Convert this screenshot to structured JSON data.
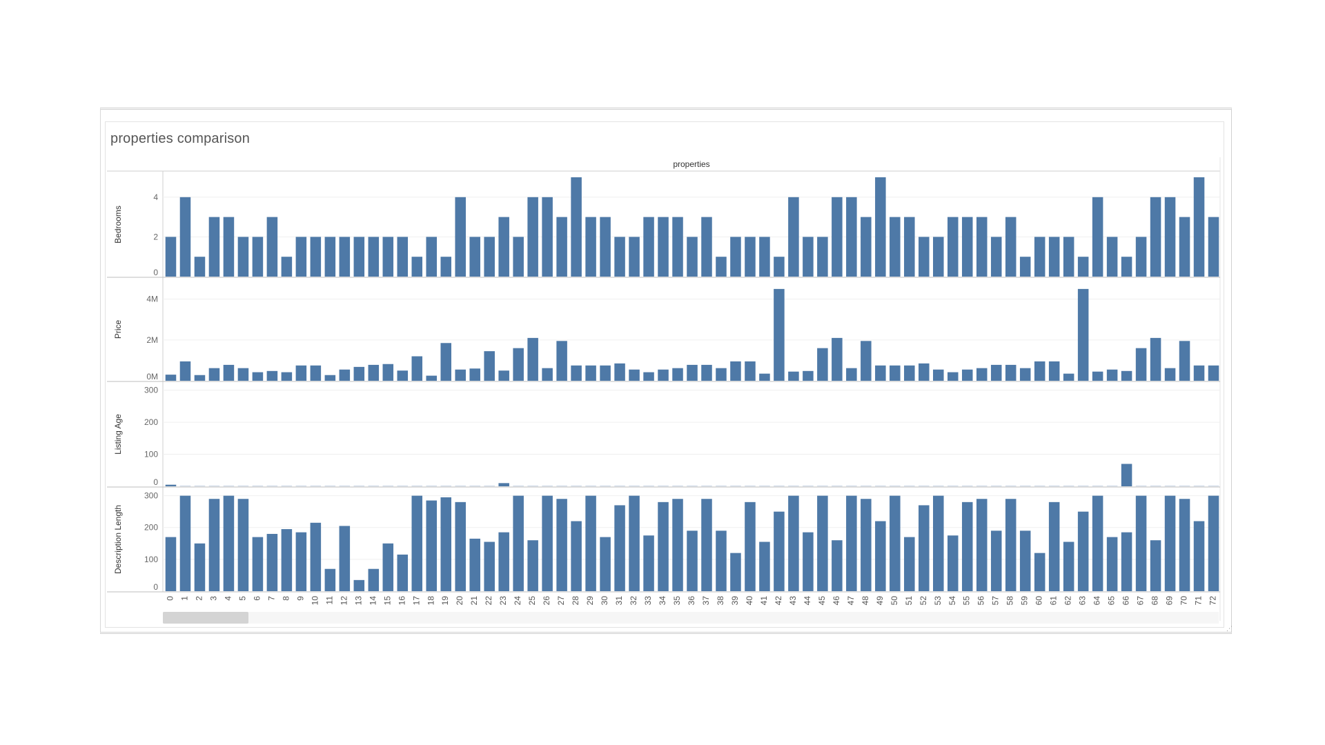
{
  "title": "properties comparison",
  "chart_data": {
    "type": "bar",
    "column_header": "properties",
    "categories": [
      "0",
      "1",
      "2",
      "3",
      "4",
      "5",
      "6",
      "7",
      "8",
      "9",
      "10",
      "11",
      "12",
      "13",
      "14",
      "15",
      "16",
      "17",
      "18",
      "19",
      "20",
      "21",
      "22",
      "23",
      "24",
      "25",
      "26",
      "27",
      "28",
      "29",
      "30",
      "31",
      "32",
      "33",
      "34",
      "35",
      "36",
      "37",
      "38",
      "39",
      "40",
      "41",
      "42",
      "43",
      "44",
      "45",
      "46",
      "47",
      "48",
      "49",
      "50",
      "51",
      "52",
      "53",
      "54",
      "55",
      "56",
      "57",
      "58",
      "59",
      "60",
      "61",
      "62",
      "63",
      "64",
      "65",
      "66",
      "67",
      "68",
      "69",
      "70",
      "71",
      "72"
    ],
    "bar_color": "#4e79a7",
    "panels": [
      {
        "name": "Bedrooms",
        "ylim": [
          0,
          5
        ],
        "ticks": [
          0,
          2,
          4
        ],
        "tick_labels": [
          "0",
          "2",
          "4"
        ],
        "values": [
          2,
          4,
          1,
          3,
          3,
          2,
          2,
          3,
          1,
          2,
          2,
          2,
          2,
          2,
          2,
          2,
          2,
          1,
          2,
          1,
          4,
          2,
          2,
          3,
          2,
          4,
          4,
          3,
          5,
          3,
          3,
          2,
          2,
          3,
          3,
          3,
          2,
          3,
          1,
          2,
          2,
          2,
          1,
          4,
          2,
          2,
          4,
          4,
          3,
          5,
          3,
          3,
          2,
          2,
          3,
          3,
          3,
          2,
          3,
          1,
          2,
          2,
          2,
          1,
          4,
          2,
          1,
          2,
          4,
          4,
          3,
          5,
          3
        ]
      },
      {
        "name": "Price",
        "ylim": [
          0,
          4800000
        ],
        "ticks": [
          0,
          2000000,
          4000000
        ],
        "tick_labels": [
          "0M",
          "2M",
          "4M"
        ],
        "values": [
          300000,
          950000,
          280000,
          620000,
          780000,
          620000,
          420000,
          480000,
          420000,
          750000,
          750000,
          280000,
          550000,
          680000,
          780000,
          820000,
          500000,
          1200000,
          250000,
          1850000,
          550000,
          600000,
          1450000,
          500000,
          1600000,
          2100000,
          620000,
          1950000,
          750000,
          750000,
          750000,
          850000,
          550000,
          420000,
          550000,
          620000,
          780000,
          780000,
          620000,
          950000,
          950000,
          350000,
          4500000,
          450000,
          480000,
          1600000,
          2100000,
          620000,
          1950000,
          750000,
          750000,
          750000,
          850000,
          550000,
          420000,
          550000,
          620000,
          780000,
          780000,
          620000,
          950000,
          950000,
          350000,
          4500000,
          450000,
          550000,
          480000,
          1600000,
          2100000,
          620000,
          1950000,
          750000,
          750000
        ]
      },
      {
        "name": "Listing Age",
        "ylim": [
          0,
          310
        ],
        "ticks": [
          0,
          100,
          200,
          300
        ],
        "tick_labels": [
          "0",
          "100",
          "200",
          "300"
        ],
        "values": [
          5,
          0,
          0,
          0,
          0,
          0,
          0,
          0,
          0,
          0,
          0,
          0,
          0,
          0,
          0,
          0,
          0,
          0,
          0,
          0,
          0,
          0,
          0,
          10,
          0,
          0,
          0,
          0,
          0,
          0,
          0,
          0,
          0,
          0,
          0,
          0,
          0,
          0,
          0,
          0,
          0,
          0,
          0,
          0,
          0,
          0,
          0,
          0,
          0,
          0,
          0,
          0,
          0,
          0,
          0,
          0,
          0,
          0,
          0,
          0,
          0,
          0,
          0,
          0,
          0,
          0,
          70,
          0,
          0,
          0,
          0,
          0,
          0
        ]
      },
      {
        "name": "Description Length",
        "ylim": [
          0,
          310
        ],
        "ticks": [
          0,
          100,
          200,
          300
        ],
        "tick_labels": [
          "0",
          "100",
          "200",
          "300"
        ],
        "values": [
          170,
          300,
          150,
          290,
          300,
          290,
          170,
          180,
          195,
          185,
          215,
          70,
          205,
          35,
          70,
          150,
          115,
          300,
          285,
          295,
          280,
          165,
          155,
          185,
          300,
          160,
          300,
          290,
          220,
          300,
          170,
          270,
          300,
          175,
          280,
          290,
          190,
          290,
          190,
          120,
          280,
          155,
          250,
          300,
          185,
          300,
          160,
          300,
          290,
          220,
          300,
          170,
          270,
          300,
          175,
          280,
          290,
          190,
          290,
          190,
          120,
          280,
          155,
          250,
          300,
          170,
          185,
          300,
          160,
          300,
          290,
          220,
          300
        ]
      }
    ]
  }
}
